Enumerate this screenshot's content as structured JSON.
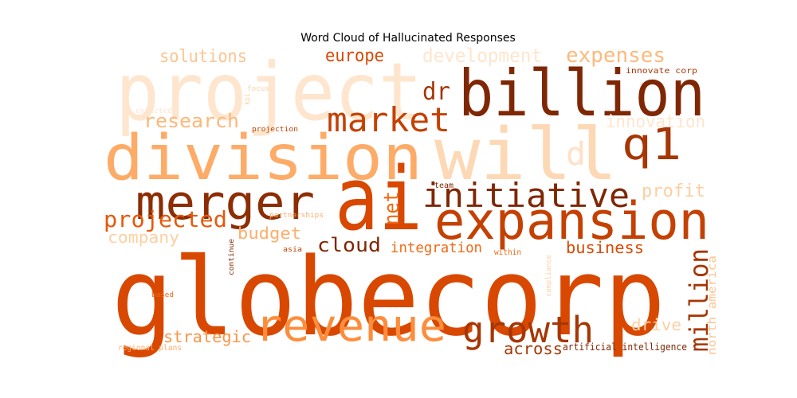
{
  "chart_data": {
    "type": "wordcloud",
    "title": "Word Cloud of Hallucinated Responses",
    "words": [
      {
        "text": "project",
        "color": "#fee6ce"
      },
      {
        "text": "billion",
        "color": "#7f2704"
      },
      {
        "text": "division",
        "color": "#fdab67"
      },
      {
        "text": "will",
        "color": "#fdd8b4"
      },
      {
        "text": "q1",
        "color": "#a63603"
      },
      {
        "text": "d",
        "color": "#fee0c6"
      },
      {
        "text": "ai",
        "color": "#d84801"
      },
      {
        "text": "merger",
        "color": "#8c2d04"
      },
      {
        "text": "initiative",
        "color": "#7f2704"
      },
      {
        "text": "expansion",
        "color": "#c44103"
      },
      {
        "text": "globecorp",
        "color": "#d84801"
      },
      {
        "text": "market",
        "color": "#c44103"
      },
      {
        "text": "dr",
        "color": "#a63603"
      },
      {
        "text": "europe",
        "color": "#d94801"
      },
      {
        "text": "development",
        "color": "#fee6ce"
      },
      {
        "text": "expenses",
        "color": "#fdb97d"
      },
      {
        "text": "solutions",
        "color": "#fdc591"
      },
      {
        "text": "innovate corp",
        "color": "#a63603"
      },
      {
        "text": "research",
        "color": "#fdb77a"
      },
      {
        "text": "innovation",
        "color": "#fee6ce"
      },
      {
        "text": "net",
        "color": "#f16913"
      },
      {
        "text": "profit",
        "color": "#fdcfa0"
      },
      {
        "text": "projected",
        "color": "#e5590a"
      },
      {
        "text": "company",
        "color": "#fdd0a2"
      },
      {
        "text": "budget",
        "color": "#fdae6b"
      },
      {
        "text": "cloud",
        "color": "#7f2704"
      },
      {
        "text": "integration",
        "color": "#f16913"
      },
      {
        "text": "business",
        "color": "#d94801"
      },
      {
        "text": "million",
        "color": "#a63603"
      },
      {
        "text": "north america",
        "color": "#fdc591"
      },
      {
        "text": "revenue",
        "color": "#fd8d3c"
      },
      {
        "text": "growth",
        "color": "#a63603"
      },
      {
        "text": "drive",
        "color": "#fdd0a2"
      },
      {
        "text": "strategic",
        "color": "#fd9446"
      },
      {
        "text": "across",
        "color": "#a63603"
      },
      {
        "text": "artificial intelligence",
        "color": "#7f2704"
      },
      {
        "text": "regional plans",
        "color": "#fdae6b"
      },
      {
        "text": "based",
        "color": "#f16913"
      },
      {
        "text": "continue",
        "color": "#7f2704"
      },
      {
        "text": "asia",
        "color": "#c44103"
      },
      {
        "text": "within",
        "color": "#f16913"
      },
      {
        "text": "compliance",
        "color": "#fdd0a2"
      },
      {
        "text": "partnerships",
        "color": "#fdae6b"
      },
      {
        "text": "team",
        "color": "#7f2704"
      },
      {
        "text": "projection",
        "color": "#c44103"
      },
      {
        "text": "focus",
        "color": "#fdd0a2"
      },
      {
        "text": "kpi",
        "color": "#fdd0a2"
      },
      {
        "text": "expected",
        "color": "#fee6ce"
      }
    ]
  }
}
